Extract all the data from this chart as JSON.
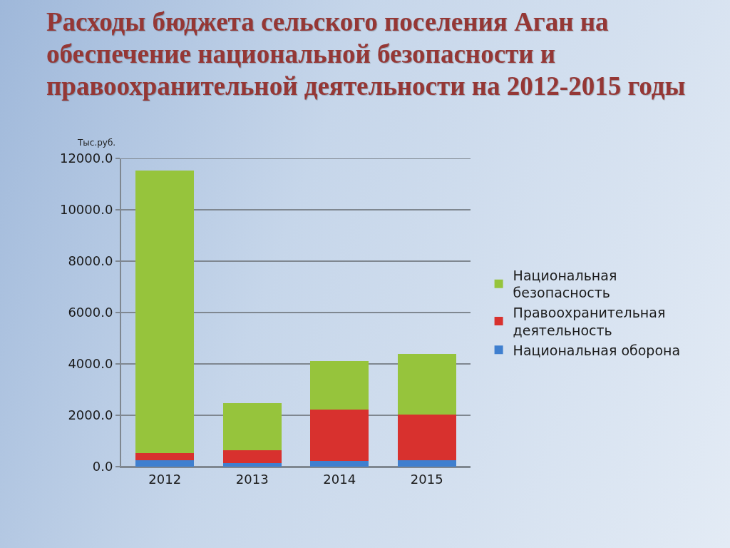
{
  "chart_data": {
    "type": "bar",
    "title": "Расходы бюджета сельского поселения Аган на обеспечение национальной безопасности и правоохранительной деятельности на 2012-2015 годы",
    "ylabel": "Тыс.руб.",
    "categories": [
      "2012",
      "2013",
      "2014",
      "2015"
    ],
    "series": [
      {
        "name": "Национальная оборона",
        "color": "#3f7fcf",
        "values": [
          250,
          130,
          220,
          240
        ]
      },
      {
        "name": "Правоохранительная деятельность",
        "color": "#d8312e",
        "values": [
          280,
          500,
          2000,
          1800
        ]
      },
      {
        "name": "Национальная безопасность",
        "color": "#96c43c",
        "values": [
          11000,
          1850,
          1900,
          2350
        ]
      }
    ],
    "stacked": true,
    "ylim": [
      0,
      12000
    ],
    "yticks": [
      {
        "value": 0,
        "label": "0.0"
      },
      {
        "value": 2000,
        "label": "2000.0"
      },
      {
        "value": 4000,
        "label": "4000.0"
      },
      {
        "value": 6000,
        "label": "6000.0"
      },
      {
        "value": 8000,
        "label": "8000.0"
      },
      {
        "value": 10000,
        "label": "10000.0"
      },
      {
        "value": 12000,
        "label": "12000.0"
      }
    ],
    "grid": "y",
    "legend": "right"
  }
}
